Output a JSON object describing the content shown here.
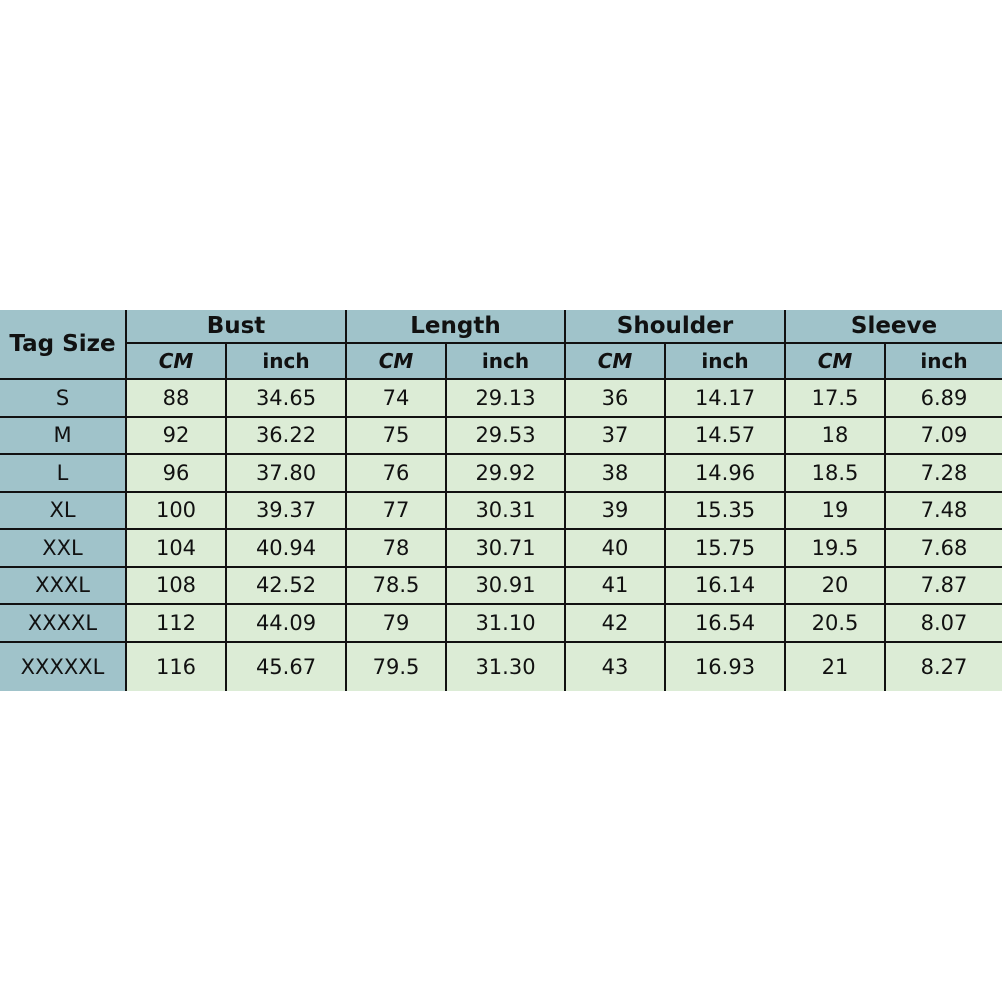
{
  "table": {
    "tag_header": "Tag Size",
    "groups": [
      "Bust",
      "Length",
      "Shoulder",
      "Sleeve"
    ],
    "units": [
      "CM",
      "inch"
    ],
    "rows": [
      [
        "S",
        "88",
        "34.65",
        "74",
        "29.13",
        "36",
        "14.17",
        "17.5",
        "6.89"
      ],
      [
        "M",
        "92",
        "36.22",
        "75",
        "29.53",
        "37",
        "14.57",
        "18",
        "7.09"
      ],
      [
        "L",
        "96",
        "37.80",
        "76",
        "29.92",
        "38",
        "14.96",
        "18.5",
        "7.28"
      ],
      [
        "XL",
        "100",
        "39.37",
        "77",
        "30.31",
        "39",
        "15.35",
        "19",
        "7.48"
      ],
      [
        "XXL",
        "104",
        "40.94",
        "78",
        "30.71",
        "40",
        "15.75",
        "19.5",
        "7.68"
      ],
      [
        "XXXL",
        "108",
        "42.52",
        "78.5",
        "30.91",
        "41",
        "16.14",
        "20",
        "7.87"
      ],
      [
        "XXXXL",
        "112",
        "44.09",
        "79",
        "31.10",
        "42",
        "16.54",
        "20.5",
        "8.07"
      ],
      [
        "XXXXXL",
        "116",
        "45.67",
        "79.5",
        "31.30",
        "43",
        "16.93",
        "21",
        "8.27"
      ]
    ]
  },
  "colors": {
    "header": "#a0c3ca",
    "cells": "#dcecd6",
    "border": "#111111"
  }
}
